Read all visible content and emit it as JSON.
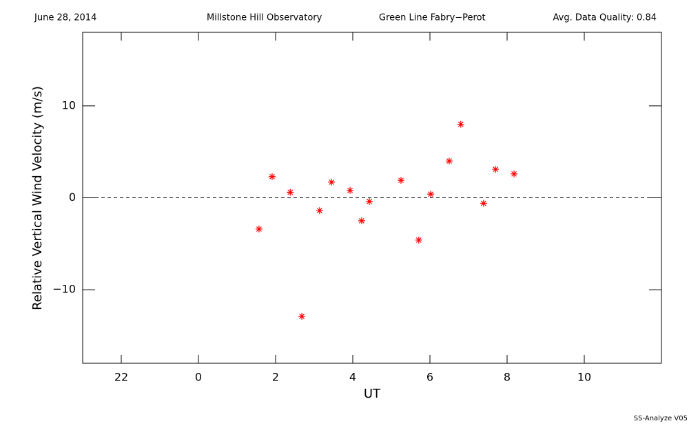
{
  "chart_data": {
    "type": "scatter",
    "header": [
      "June 28, 2014",
      "Millstone Hill Observatory",
      "Green Line Fabry−Perot",
      "Avg. Data Quality: 0.84"
    ],
    "footer": "SS-Analyze V05",
    "xlabel": "UT",
    "ylabel": "Relative Vertical Wind Velocity (m/s)",
    "xlim": [
      -3,
      12
    ],
    "xticks": [
      {
        "value": -2,
        "label": "22"
      },
      0,
      2,
      4,
      6,
      8,
      10
    ],
    "ylim": [
      -18,
      18
    ],
    "yticks": [
      {
        "value": -10,
        "label": "−10"
      },
      0,
      10
    ],
    "reference_line": 0,
    "series": [
      {
        "color": "#ff0000",
        "x": [
          1.57,
          1.91,
          2.38,
          2.68,
          3.14,
          3.45,
          3.93,
          4.23,
          4.43,
          5.25,
          5.71,
          6.02,
          6.5,
          6.8,
          7.39,
          7.7,
          8.18
        ],
        "values": [
          -3.4,
          2.3,
          0.6,
          -12.9,
          -1.4,
          1.7,
          0.8,
          -2.5,
          -0.4,
          1.9,
          -4.6,
          0.4,
          4.0,
          8.0,
          -0.6,
          3.1,
          2.6
        ]
      }
    ]
  }
}
